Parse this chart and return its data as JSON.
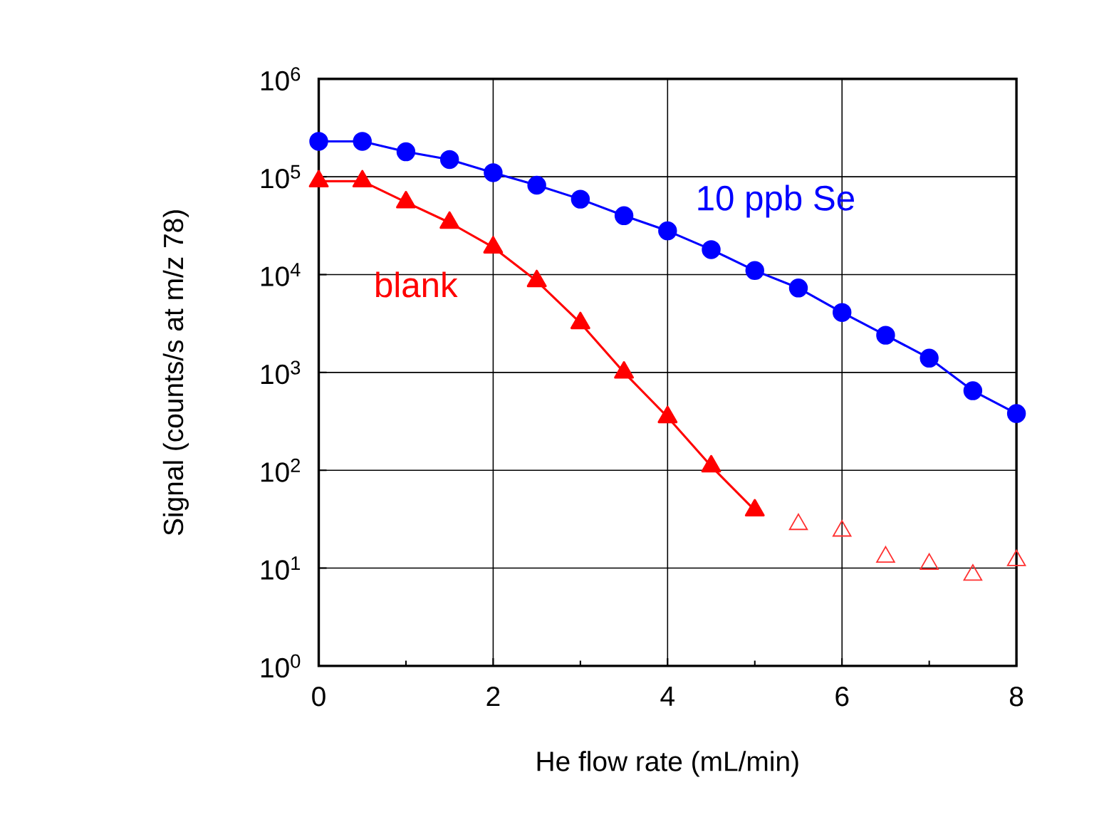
{
  "chart_data": {
    "type": "line",
    "xlabel": "He flow rate (mL/min)",
    "ylabel": "Signal (counts/s at m/z 78)",
    "log": "y",
    "grid": true,
    "legend": false,
    "line_style": "solid",
    "xlim": [
      0,
      8
    ],
    "xticks": [
      0,
      {
        "value": 1,
        "label": null
      },
      2,
      {
        "value": 3,
        "label": null
      },
      4,
      {
        "value": 5,
        "label": null
      },
      6,
      {
        "value": 7,
        "label": null
      },
      8
    ],
    "ylim": [
      1,
      1000000
    ],
    "yticks": [
      {
        "value": 1,
        "label": "10$^{0}$"
      },
      {
        "value": 10,
        "label": "10$^{1}$"
      },
      {
        "value": 100,
        "label": "10$^{2}$"
      },
      {
        "value": 1000,
        "label": "10$^{3}$"
      },
      {
        "value": 10000,
        "label": "10$^{4}$"
      },
      {
        "value": 100000,
        "label": "10$^{5}$"
      },
      {
        "value": 1000000,
        "label": "10$^{6}$"
      }
    ],
    "series": [
      {
        "name": "10 ppb Se",
        "color": "#0000ff",
        "marker": "circle",
        "x": [
          0,
          0.5,
          1,
          1.5,
          2,
          2.5,
          3,
          3.5,
          4,
          4.5,
          5,
          5.5,
          6,
          6.5,
          7,
          7.5,
          8
        ],
        "values": [
          230000,
          230000,
          180000,
          150000,
          110000,
          82000,
          59000,
          40000,
          28000,
          18000,
          11000,
          7300,
          4100,
          2400,
          1400,
          650,
          380
        ]
      },
      {
        "name": "blank",
        "color": "#ff0000",
        "marker": "triangle",
        "x": [
          0,
          0.5,
          1,
          1.5,
          2,
          2.5,
          3,
          3.5,
          4,
          4.5,
          5
        ],
        "values": [
          90000,
          90000,
          55000,
          34000,
          19000,
          8600,
          3200,
          1000,
          350,
          110,
          39
        ]
      },
      {
        "type": "scatter",
        "color": "#ff3030",
        "marker": "triangle",
        "x": [
          5.5,
          6,
          6.5,
          7,
          7.5,
          8
        ],
        "values": [
          28,
          24,
          13,
          11,
          8.5,
          12
        ]
      }
    ]
  }
}
